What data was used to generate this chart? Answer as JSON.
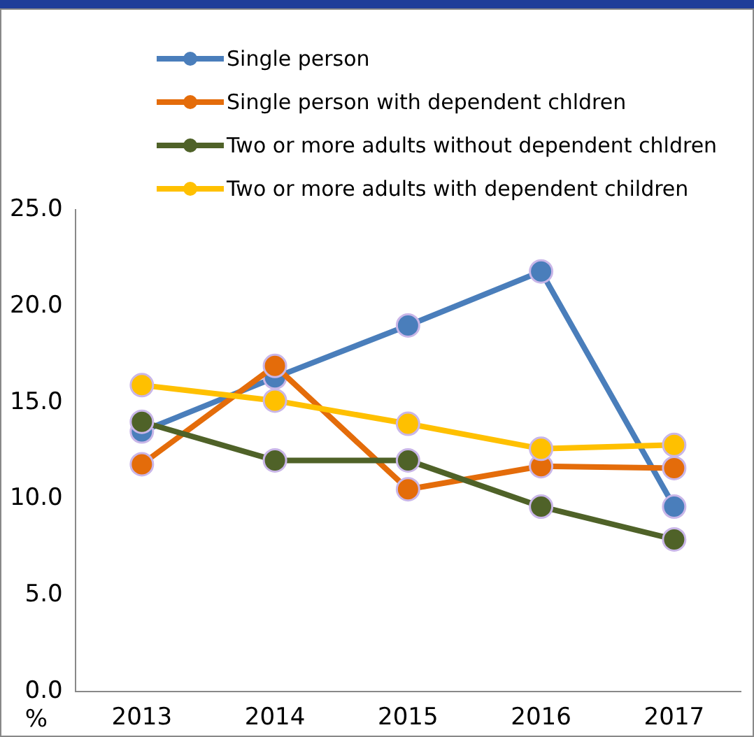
{
  "chart_data": {
    "type": "line",
    "ylabel": "%",
    "categories": [
      "2013",
      "2014",
      "2015",
      "2016",
      "2017"
    ],
    "series": [
      {
        "name": "Single person",
        "color": "#4a7ebb",
        "values": [
          13.5,
          16.3,
          19.0,
          21.8,
          9.6
        ]
      },
      {
        "name": "Single person with dependent chldren",
        "color": "#e46c0a",
        "values": [
          11.8,
          16.9,
          10.5,
          11.7,
          11.6
        ]
      },
      {
        "name": "Two or more adults without dependent chldren",
        "color": "#4f6228",
        "values": [
          14.0,
          12.0,
          12.0,
          9.6,
          7.9
        ]
      },
      {
        "name": "Two or more adults with dependent children",
        "color": "#ffc000",
        "values": [
          15.9,
          15.1,
          13.9,
          12.6,
          12.8
        ]
      }
    ],
    "ylim": [
      0,
      25
    ],
    "yticks": [
      {
        "value": 0,
        "label": "0.0"
      },
      {
        "value": 5,
        "label": "5.0"
      },
      {
        "value": 10,
        "label": "10.0"
      },
      {
        "value": 15,
        "label": "15.0"
      },
      {
        "value": 20,
        "label": "20.0"
      },
      {
        "value": 25,
        "label": "25.0"
      }
    ],
    "grid": false,
    "legend": "top",
    "marker": "circle",
    "line_style": "solid"
  }
}
